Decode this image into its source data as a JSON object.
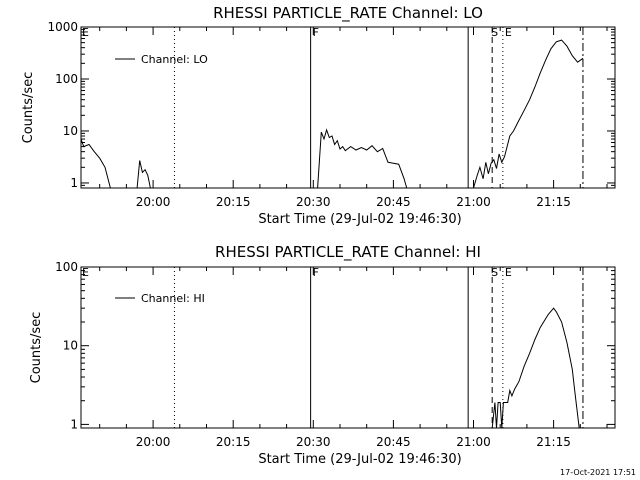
{
  "chart_data": [
    {
      "type": "line",
      "title": "RHESSI PARTICLE_RATE Channel: LO",
      "xlabel": "Start Time (29-Jul-02 19:46:30)",
      "ylabel": "Counts/sec",
      "yscale": "log",
      "xlim_minutes_after_start": [
        0,
        100
      ],
      "ylim": [
        0.8,
        1000
      ],
      "x_ticks": [
        {
          "at": "20:00",
          "label": "20:00"
        },
        {
          "at": "20:15",
          "label": "20:15"
        },
        {
          "at": "20:30",
          "label": "20:30"
        },
        {
          "at": "20:45",
          "label": "20:45"
        },
        {
          "at": "21:00",
          "label": "21:00"
        },
        {
          "at": "21:15",
          "label": "21:15"
        }
      ],
      "y_ticks": [
        {
          "value": 1,
          "label": "1"
        },
        {
          "value": 10,
          "label": "10"
        },
        {
          "value": 100,
          "label": "100"
        },
        {
          "value": 1000,
          "label": "1000"
        }
      ],
      "legend": {
        "label": "Channel: LO",
        "placement": "top-left"
      },
      "markers": [
        {
          "time": "20:04",
          "style": "dotted",
          "label": ""
        },
        {
          "time": "20:29.5",
          "style": "solid",
          "label": "F"
        },
        {
          "time": "20:59",
          "style": "solid",
          "label": ""
        },
        {
          "time": "21:03.5",
          "style": "dashed",
          "label": "S"
        },
        {
          "time": "21:05.5",
          "style": "dotted",
          "label": "E"
        },
        {
          "time": "21:20.5",
          "style": "dashdot",
          "label": ""
        }
      ],
      "edge_label": "E",
      "segments": [
        {
          "x": [
            "19:46:30",
            "19:47",
            "19:48",
            "19:49",
            "19:50",
            "19:51",
            "19:52"
          ],
          "y": [
            7,
            5,
            5.5,
            4,
            3,
            2,
            0.8
          ]
        },
        {
          "x": [
            "19:57",
            "19:57.5",
            "19:58",
            "19:58.5",
            "19:59",
            "19:59.5"
          ],
          "y": [
            0.8,
            2.7,
            1.6,
            1.8,
            1.4,
            0.8
          ]
        },
        {
          "x": [
            "20:30.8",
            "20:31.5",
            "20:32",
            "20:32.5",
            "20:33",
            "20:33.5",
            "20:34",
            "20:34.5",
            "20:35",
            "20:35.5",
            "20:36",
            "20:37",
            "20:38",
            "20:39",
            "20:40",
            "20:41",
            "20:42",
            "20:43",
            "20:44",
            "20:45",
            "20:46",
            "20:47",
            "20:47.5"
          ],
          "y": [
            0.8,
            9.5,
            7,
            10.5,
            7.5,
            8,
            5.5,
            6.5,
            4.5,
            5,
            4.2,
            5,
            4.3,
            4.8,
            4.3,
            5.2,
            4,
            4.6,
            2.5,
            2.4,
            2.3,
            1.2,
            0.8
          ]
        },
        {
          "x": [
            "21:00",
            "21:00.7",
            "21:01.2",
            "21:01.8",
            "21:02.3",
            "21:02.8",
            "21:03.3",
            "21:03.8",
            "21:04.3",
            "21:04.8",
            "21:05.3",
            "21:05.8",
            "21:06.3",
            "21:06.8",
            "21:07.5",
            "21:08.5",
            "21:09.5",
            "21:10.5",
            "21:11.5",
            "21:12.5",
            "21:13.5",
            "21:14.5",
            "21:15.5",
            "21:16.5",
            "21:17.5",
            "21:18.5",
            "21:19.5",
            "21:20.5"
          ],
          "y": [
            0.8,
            1.4,
            2,
            1.2,
            2.5,
            1.5,
            2.4,
            2.8,
            1.9,
            3.6,
            2.5,
            3.2,
            5,
            8,
            10,
            16,
            25,
            40,
            70,
            130,
            230,
            380,
            520,
            560,
            430,
            280,
            210,
            250
          ]
        }
      ]
    },
    {
      "type": "line",
      "title": "RHESSI PARTICLE_RATE Channel: HI",
      "xlabel": "Start Time (29-Jul-02 19:46:30)",
      "ylabel": "Counts/sec",
      "yscale": "log",
      "xlim_minutes_after_start": [
        0,
        100
      ],
      "ylim": [
        0.9,
        100
      ],
      "x_ticks": [
        {
          "at": "20:00",
          "label": "20:00"
        },
        {
          "at": "20:15",
          "label": "20:15"
        },
        {
          "at": "20:30",
          "label": "20:30"
        },
        {
          "at": "20:45",
          "label": "20:45"
        },
        {
          "at": "21:00",
          "label": "21:00"
        },
        {
          "at": "21:15",
          "label": "21:15"
        }
      ],
      "y_ticks": [
        {
          "value": 1,
          "label": "1"
        },
        {
          "value": 10,
          "label": "10"
        },
        {
          "value": 100,
          "label": "100"
        }
      ],
      "legend": {
        "label": "Channel: HI",
        "placement": "top-left"
      },
      "markers": [
        {
          "time": "20:04",
          "style": "dotted",
          "label": ""
        },
        {
          "time": "20:29.5",
          "style": "solid",
          "label": "F"
        },
        {
          "time": "20:59",
          "style": "solid",
          "label": ""
        },
        {
          "time": "21:03.5",
          "style": "dashed",
          "label": "S"
        },
        {
          "time": "21:05.5",
          "style": "dotted",
          "label": "E"
        },
        {
          "time": "21:20.5",
          "style": "dashdot",
          "label": ""
        }
      ],
      "edge_label": "E",
      "segments": [
        {
          "x": [
            "21:03.5",
            "21:04",
            "21:04.3",
            "21:04.6",
            "21:05",
            "21:05.3",
            "21:05.6",
            "21:06",
            "21:06.4",
            "21:06.8",
            "21:07.2",
            "21:07.7",
            "21:08.5",
            "21:09.5",
            "21:10.5",
            "21:11.5",
            "21:12.5",
            "21:13.5",
            "21:14",
            "21:15",
            "21:15.5",
            "21:16.5",
            "21:17.5",
            "21:18.5",
            "21:19",
            "21:19.8"
          ],
          "y": [
            0.9,
            1.9,
            0.9,
            1.9,
            1.9,
            0.9,
            1.9,
            1.9,
            1.9,
            2.7,
            2.3,
            2.8,
            3.5,
            5.5,
            8,
            12,
            17,
            22,
            25,
            30,
            27,
            20,
            11,
            5,
            2.5,
            0.9
          ]
        }
      ]
    }
  ],
  "footer": {
    "timestamp": "17-Oct-2021 17:51"
  }
}
